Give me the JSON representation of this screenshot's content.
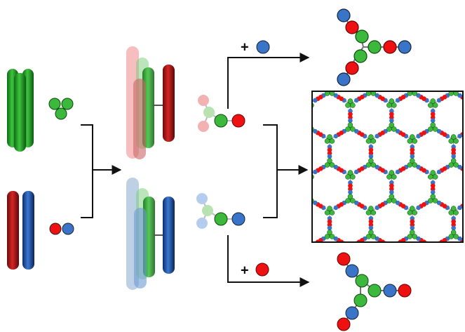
{
  "labels": {
    "add_blue": "+",
    "add_red": "+"
  }
}
